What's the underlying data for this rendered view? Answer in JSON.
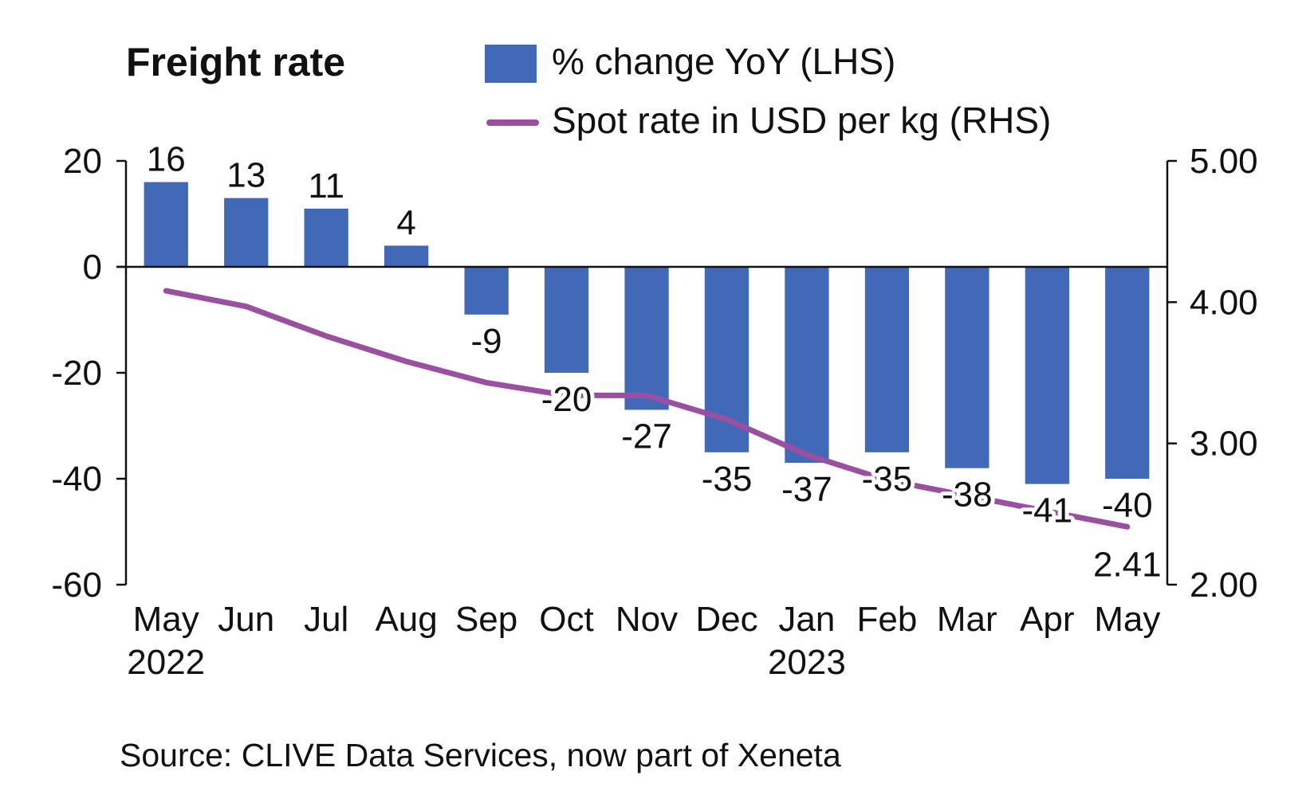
{
  "chart_data": {
    "type": "bar",
    "title": "Freight rate",
    "categories": [
      "May",
      "Jun",
      "Jul",
      "Aug",
      "Sep",
      "Oct",
      "Nov",
      "Dec",
      "Jan",
      "Feb",
      "Mar",
      "Apr",
      "May"
    ],
    "category_year_labels": [
      "2022",
      "",
      "",
      "",
      "",
      "",
      "",
      "",
      "2023",
      "",
      "",
      "",
      ""
    ],
    "series": [
      {
        "name": "% change YoY (LHS)",
        "type": "bar",
        "axis": "left",
        "color": "#4169b8",
        "values": [
          16,
          13,
          11,
          4,
          -9,
          -20,
          -27,
          -35,
          -37,
          -35,
          -38,
          -41,
          -40
        ],
        "labels": [
          "16",
          "13",
          "11",
          "4",
          "-9",
          "-20",
          "-27",
          "-35",
          "-37",
          "-35",
          "-38",
          "-41",
          "-40"
        ]
      },
      {
        "name": "Spot rate in USD per kg (RHS)",
        "type": "line",
        "axis": "right",
        "color": "#9b4fa1",
        "values": [
          4.08,
          3.97,
          3.76,
          3.58,
          3.43,
          3.34,
          3.34,
          3.17,
          2.92,
          2.74,
          2.63,
          2.52,
          2.41
        ],
        "end_label": "2.41"
      }
    ],
    "y_left": {
      "lim": [
        -60,
        20
      ],
      "ticks": [
        20,
        0,
        -20,
        -40,
        -60
      ],
      "tick_labels": [
        "20",
        "0",
        "-20",
        "-40",
        "-60"
      ]
    },
    "y_right": {
      "lim": [
        2.0,
        5.0
      ],
      "ticks": [
        5.0,
        4.0,
        3.0,
        2.0
      ],
      "tick_labels": [
        "5.00",
        "4.00",
        "3.00",
        "2.00"
      ]
    },
    "legend_position": "top",
    "grid": false
  },
  "source": "Source: CLIVE Data Services, now part of Xeneta"
}
